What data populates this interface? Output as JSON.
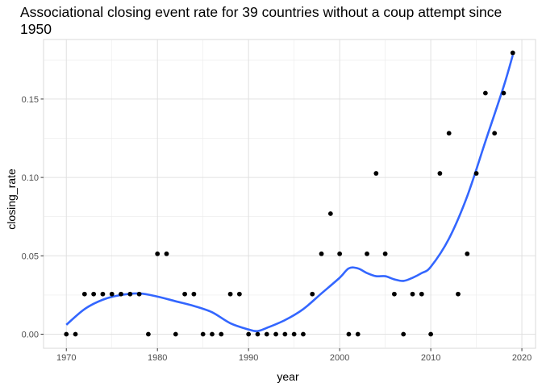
{
  "chart_data": {
    "type": "scatter",
    "title": "Associational closing event rate for 39 countries without a coup attempt since 1950",
    "xlabel": "year",
    "ylabel": "closing_rate",
    "xlim": [
      1967.5,
      2021.5
    ],
    "ylim": [
      -0.009,
      0.188
    ],
    "x_ticks": [
      1970,
      1980,
      1990,
      2000,
      2010,
      2020
    ],
    "x_tick_labels": [
      "1970",
      "1980",
      "1990",
      "2000",
      "2010",
      "2020"
    ],
    "y_ticks": [
      0.0,
      0.05,
      0.1,
      0.15
    ],
    "y_tick_labels": [
      "0.00",
      "0.05",
      "0.10",
      "0.15"
    ],
    "grid": true,
    "series": [
      {
        "kind": "points",
        "color": "#000000",
        "x": [
          1970,
          1971,
          1972,
          1973,
          1974,
          1975,
          1976,
          1977,
          1978,
          1979,
          1980,
          1981,
          1982,
          1983,
          1984,
          1985,
          1986,
          1987,
          1988,
          1989,
          1990,
          1991,
          1992,
          1993,
          1994,
          1995,
          1996,
          1997,
          1998,
          1999,
          2000,
          2001,
          2002,
          2003,
          2004,
          2005,
          2006,
          2007,
          2008,
          2009,
          2010,
          2011,
          2012,
          2013,
          2014,
          2015,
          2016,
          2017,
          2018,
          2019
        ],
        "y": [
          0,
          0,
          0.0256,
          0.0256,
          0.0256,
          0.0256,
          0.0256,
          0.0256,
          0.0256,
          0,
          0.0513,
          0.0513,
          0,
          0.0256,
          0.0256,
          0,
          0,
          0,
          0.0256,
          0.0256,
          0,
          0,
          0,
          0,
          0,
          0,
          0,
          0.0256,
          0.0513,
          0.0769,
          0.0513,
          0,
          0,
          0.0513,
          0.1026,
          0.0513,
          0.0256,
          0,
          0.0256,
          0.0256,
          0,
          0.1026,
          0.1282,
          0.0256,
          0.0513,
          0.1026,
          0.1538,
          0.1282,
          0.1538,
          0.1795
        ]
      },
      {
        "kind": "smooth",
        "color": "#3366FF",
        "x": [
          1970,
          1972,
          1974,
          1976,
          1978,
          1980,
          1982,
          1984,
          1986,
          1988,
          1990,
          1991,
          1992,
          1994,
          1996,
          1998,
          2000,
          2001,
          2002,
          2003,
          2004,
          2005,
          2006,
          2007,
          2008,
          2009,
          2010,
          2012,
          2014,
          2016,
          2018,
          2019
        ],
        "y": [
          0.006,
          0.016,
          0.022,
          0.025,
          0.026,
          0.024,
          0.021,
          0.018,
          0.014,
          0.007,
          0.003,
          0.002,
          0.004,
          0.009,
          0.016,
          0.026,
          0.036,
          0.042,
          0.042,
          0.039,
          0.037,
          0.037,
          0.035,
          0.034,
          0.036,
          0.039,
          0.043,
          0.061,
          0.088,
          0.123,
          0.158,
          0.178
        ]
      }
    ]
  }
}
